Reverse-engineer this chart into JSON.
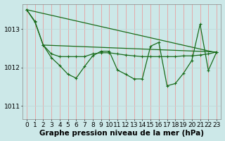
{
  "bg_color": "#cce8e8",
  "line_color": "#1a6b1a",
  "grid_color_v": "#e8a0a0",
  "grid_color_h": "#c0d8d8",
  "xlabel": "Graphe pression niveau de la mer (hPa)",
  "xlabel_fontsize": 7.5,
  "yticks": [
    1011,
    1012,
    1013
  ],
  "ylim": [
    1010.65,
    1013.65
  ],
  "xlim": [
    -0.5,
    23.5
  ],
  "xtick_labels": [
    "0",
    "1",
    "2",
    "3",
    "4",
    "5",
    "6",
    "7",
    "8",
    "9",
    "10",
    "11",
    "12",
    "13",
    "14",
    "15",
    "16",
    "17",
    "18",
    "19",
    "20",
    "21",
    "22",
    "23"
  ],
  "tick_fontsize": 6.5,
  "y_zigzag": [
    1013.5,
    1013.2,
    1012.58,
    1012.25,
    1012.05,
    1011.82,
    1011.72,
    1012.02,
    1012.3,
    1012.42,
    1012.42,
    1011.93,
    1011.82,
    1011.7,
    1011.7,
    1012.55,
    1012.65,
    1011.52,
    1011.58,
    1011.85,
    1012.18,
    1013.12,
    1011.92,
    1012.4
  ],
  "y_smooth": [
    1013.5,
    1013.18,
    1012.58,
    1012.35,
    1012.28,
    1012.28,
    1012.28,
    1012.28,
    1012.35,
    1012.38,
    1012.38,
    1012.35,
    1012.32,
    1012.3,
    1012.28,
    1012.28,
    1012.28,
    1012.28,
    1012.28,
    1012.3,
    1012.3,
    1012.32,
    1012.35,
    1012.4
  ],
  "trend_x": [
    0,
    23
  ],
  "trend_y": [
    1013.5,
    1012.38
  ],
  "trend2_x": [
    2,
    23
  ],
  "trend2_y": [
    1012.58,
    1012.4
  ]
}
